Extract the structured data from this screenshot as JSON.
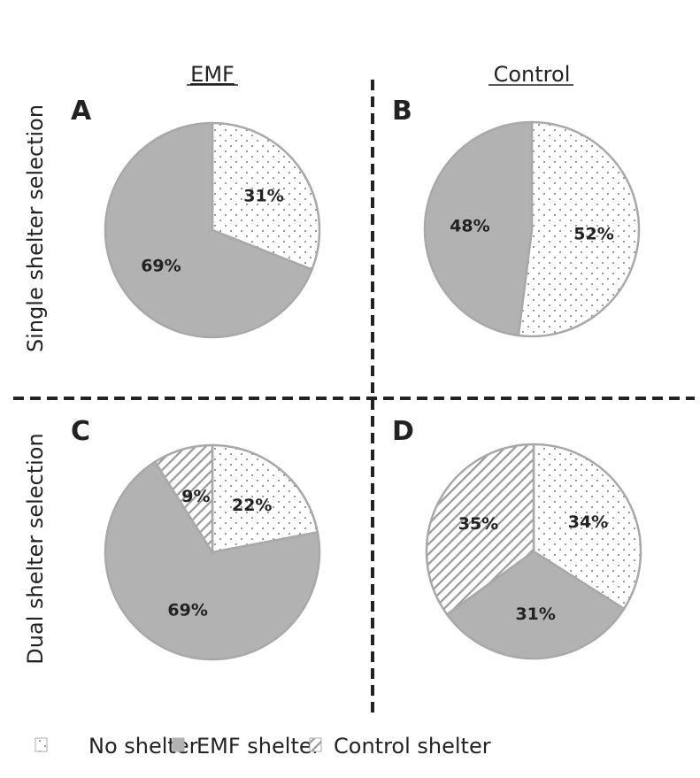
{
  "chart_data": {
    "type": "pie",
    "column_headers": [
      "EMF",
      "Control"
    ],
    "row_headers": [
      "Single shelter selection",
      "Dual shelter selection"
    ],
    "legend": {
      "placement": "bottom",
      "entries": [
        "No shelter",
        "EMF shelter",
        "Control shelter"
      ]
    },
    "colors": {
      "no_shelter": "#ffffff",
      "emf_shelter": "#b2b2b2",
      "control_shelter": "#ffffff",
      "outline": "#a8a8a8",
      "pattern": "#999999"
    },
    "panels": [
      {
        "letter": "A",
        "slices": [
          {
            "name": "No shelter",
            "value": 31,
            "label": "31%"
          },
          {
            "name": "EMF shelter",
            "value": 69,
            "label": "69%"
          }
        ]
      },
      {
        "letter": "B",
        "slices": [
          {
            "name": "No shelter",
            "value": 52,
            "label": "52%"
          },
          {
            "name": "EMF shelter",
            "value": 48,
            "label": "48%"
          }
        ]
      },
      {
        "letter": "C",
        "slices": [
          {
            "name": "No shelter",
            "value": 22,
            "label": "22%"
          },
          {
            "name": "EMF shelter",
            "value": 69,
            "label": "69%"
          },
          {
            "name": "Control shelter",
            "value": 9,
            "label": "9%"
          }
        ]
      },
      {
        "letter": "D",
        "slices": [
          {
            "name": "No shelter",
            "value": 34,
            "label": "34%"
          },
          {
            "name": "EMF shelter",
            "value": 31,
            "label": "31%"
          },
          {
            "name": "Control shelter",
            "value": 35,
            "label": "35%"
          }
        ]
      }
    ]
  }
}
